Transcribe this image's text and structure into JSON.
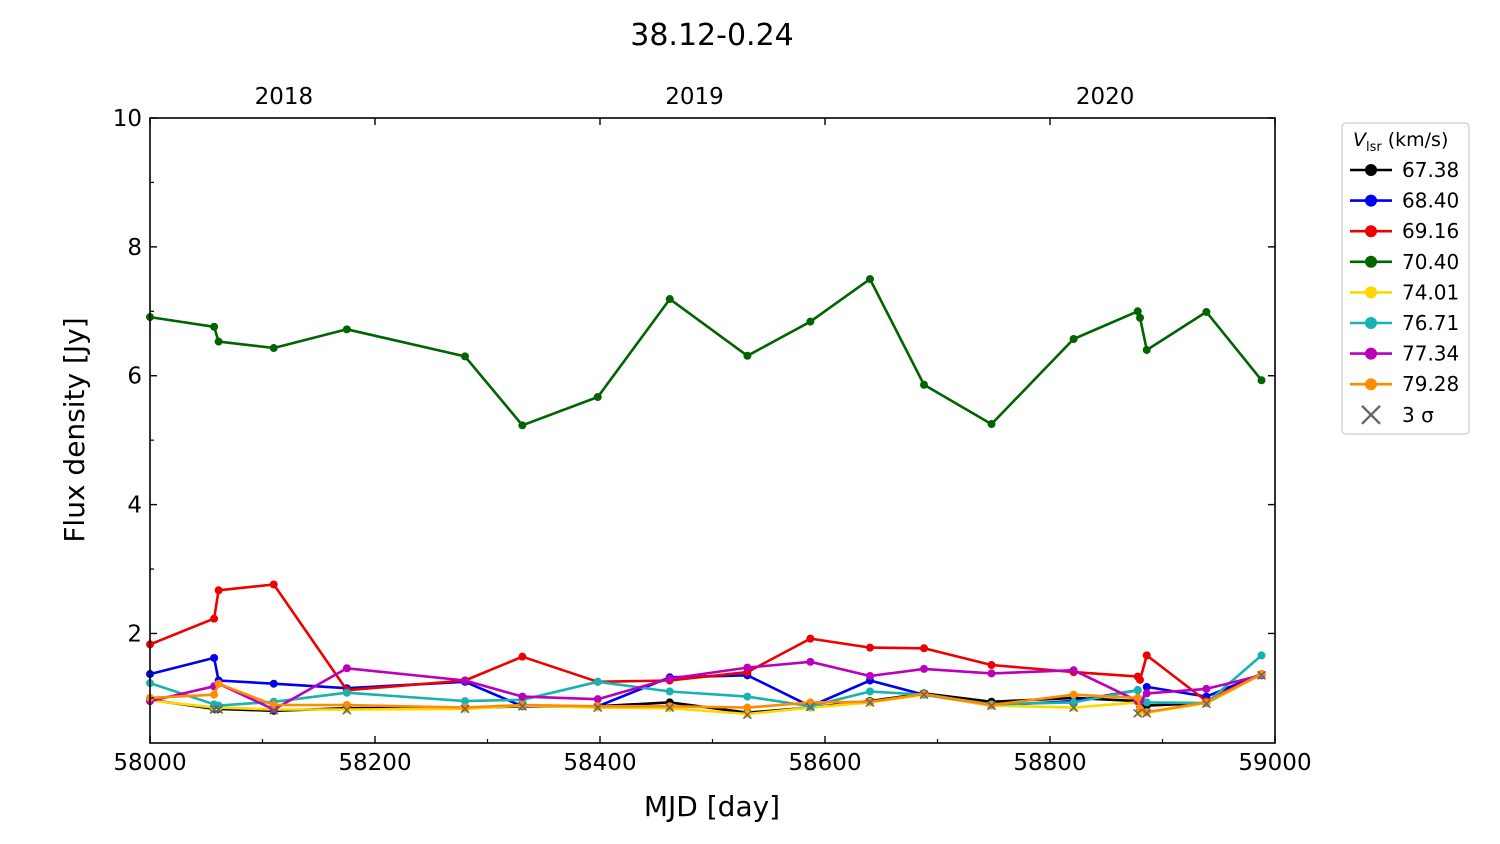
{
  "chart_data": {
    "type": "line",
    "title": "38.12-0.24",
    "xlabel": "MJD [day]",
    "ylabel": "Flux density [Jy]",
    "xlim": [
      58000,
      59000
    ],
    "ylim": [
      0.3,
      10
    ],
    "xticks": [
      58000,
      58200,
      58400,
      58600,
      58800,
      59000
    ],
    "yticks": [
      2,
      4,
      6,
      8,
      10
    ],
    "top_axis": {
      "ticks": [
        {
          "label": "2018",
          "mjd": 58119
        },
        {
          "label": "2019",
          "mjd": 58484
        },
        {
          "label": "2020",
          "mjd": 58849
        }
      ]
    },
    "legend": {
      "title_main": "V",
      "title_sub": "lsr",
      "title_unit": "(km/s)",
      "placement": "outside-right",
      "sigma_label": "3 σ"
    },
    "series": [
      {
        "name": "67.38",
        "color": "#000000",
        "x": [
          58000,
          58057,
          58061,
          58110,
          58175,
          58280,
          58331,
          58398,
          58462,
          58531,
          58587,
          58640,
          58688,
          58748,
          58821,
          58878,
          58880,
          58886,
          58939,
          58988
        ],
        "y": [
          0.97,
          0.83,
          0.83,
          0.8,
          0.84,
          0.84,
          0.87,
          0.87,
          0.93,
          0.77,
          0.85,
          0.95,
          1.07,
          0.94,
          1.0,
          0.95,
          0.88,
          0.88,
          0.92,
          1.37
        ]
      },
      {
        "name": "68.40",
        "color": "#0000ee",
        "x": [
          58000,
          58057,
          58061,
          58110,
          58175,
          58280,
          58331,
          58398,
          58462,
          58531,
          58587,
          58640,
          58688,
          58748,
          58821,
          58878,
          58880,
          58886,
          58939,
          58988
        ],
        "y": [
          1.37,
          1.62,
          1.27,
          1.22,
          1.15,
          1.25,
          0.87,
          0.87,
          1.32,
          1.35,
          0.87,
          1.27,
          1.05,
          0.88,
          0.95,
          1.12,
          0.82,
          1.17,
          1.02,
          1.37
        ]
      },
      {
        "name": "69.16",
        "color": "#ee0000",
        "x": [
          58000,
          58057,
          58061,
          58110,
          58175,
          58280,
          58331,
          58398,
          58462,
          58531,
          58587,
          58640,
          58688,
          58748,
          58821,
          58878,
          58880,
          58886,
          58939,
          58988
        ],
        "y": [
          1.83,
          2.23,
          2.67,
          2.76,
          1.12,
          1.27,
          1.64,
          1.25,
          1.27,
          1.4,
          1.92,
          1.78,
          1.77,
          1.51,
          1.4,
          1.33,
          1.28,
          1.66,
          0.95,
          1.37
        ]
      },
      {
        "name": "70.40",
        "color": "#006400",
        "x": [
          58000,
          58057,
          58061,
          58110,
          58175,
          58280,
          58331,
          58398,
          58462,
          58531,
          58587,
          58640,
          58688,
          58748,
          58821,
          58878,
          58880,
          58886,
          58939,
          58988
        ],
        "y": [
          6.91,
          6.76,
          6.53,
          6.43,
          6.72,
          6.3,
          5.23,
          5.67,
          7.19,
          6.31,
          6.84,
          7.5,
          5.86,
          5.25,
          6.57,
          7.0,
          6.9,
          6.4,
          6.99,
          5.93
        ]
      },
      {
        "name": "74.01",
        "color": "#ffd700",
        "x": [
          58000,
          58057,
          58061,
          58110,
          58175,
          58280,
          58331,
          58398,
          58462,
          58531,
          58587,
          58640,
          58688,
          58748,
          58821,
          58878,
          58880,
          58886,
          58939,
          58988
        ],
        "y": [
          0.96,
          0.85,
          0.85,
          0.82,
          0.82,
          0.83,
          0.88,
          0.85,
          0.84,
          0.75,
          0.85,
          0.93,
          1.05,
          0.88,
          0.85,
          0.93,
          0.77,
          0.77,
          0.92,
          1.37
        ]
      },
      {
        "name": "76.71",
        "color": "#17b3b0",
        "x": [
          58000,
          58057,
          58061,
          58110,
          58175,
          58280,
          58331,
          58398,
          58462,
          58531,
          58587,
          58640,
          58688,
          58748,
          58821,
          58878,
          58880,
          58886,
          58939,
          58988
        ],
        "y": [
          1.23,
          0.9,
          0.88,
          0.94,
          1.08,
          0.95,
          0.97,
          1.25,
          1.1,
          1.02,
          0.87,
          1.1,
          1.05,
          0.9,
          0.93,
          1.12,
          0.95,
          0.93,
          0.92,
          1.66
        ]
      },
      {
        "name": "77.34",
        "color": "#bb00bb",
        "x": [
          58000,
          58057,
          58061,
          58110,
          58175,
          58280,
          58331,
          58398,
          58462,
          58531,
          58587,
          58640,
          58688,
          58748,
          58821,
          58878,
          58880,
          58886,
          58939,
          58988
        ],
        "y": [
          0.95,
          1.18,
          1.22,
          0.82,
          1.46,
          1.27,
          1.02,
          0.98,
          1.3,
          1.47,
          1.56,
          1.34,
          1.45,
          1.38,
          1.43,
          0.95,
          0.95,
          1.07,
          1.14,
          1.35
        ]
      },
      {
        "name": "79.28",
        "color": "#ff8c00",
        "x": [
          58000,
          58057,
          58061,
          58110,
          58175,
          58280,
          58331,
          58398,
          58462,
          58531,
          58587,
          58640,
          58688,
          58748,
          58821,
          58878,
          58880,
          58886,
          58939,
          58988
        ],
        "y": [
          1.0,
          1.05,
          1.22,
          0.89,
          0.89,
          0.85,
          0.89,
          0.87,
          0.87,
          0.85,
          0.93,
          0.94,
          1.06,
          0.89,
          1.05,
          1.0,
          0.83,
          0.78,
          0.93,
          1.37
        ]
      }
    ],
    "sigma_marks": {
      "x": [
        58057,
        58061,
        58110,
        58175,
        58280,
        58331,
        58398,
        58462,
        58531,
        58587,
        58640,
        58688,
        58748,
        58821,
        58878,
        58886,
        58939,
        58988
      ],
      "y": [
        0.82,
        0.82,
        0.81,
        0.81,
        0.83,
        0.87,
        0.85,
        0.85,
        0.74,
        0.86,
        0.93,
        1.05,
        0.88,
        0.85,
        0.76,
        0.76,
        0.91,
        1.35
      ]
    }
  }
}
